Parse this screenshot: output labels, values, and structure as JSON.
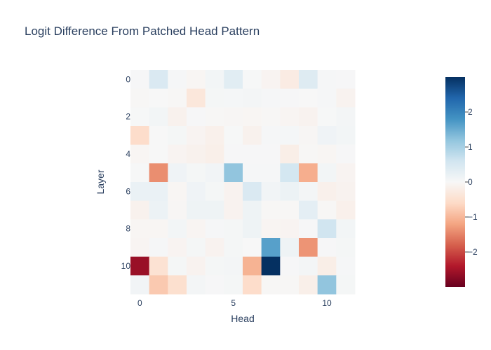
{
  "chart_data": {
    "type": "heatmap",
    "title": "Logit Difference From Patched Head Pattern",
    "xlabel": "Head",
    "ylabel": "Layer",
    "x_ticks": [
      0,
      5,
      10
    ],
    "y_ticks": [
      0,
      2,
      4,
      6,
      8,
      10
    ],
    "colorbar_ticks": [
      2,
      1,
      0,
      -1,
      -2
    ],
    "zmin": -3,
    "zmax": 3,
    "colorscale": [
      "#67001f",
      "#b2182b",
      "#d6604d",
      "#f4a582",
      "#fddbc7",
      "#f7f7f7",
      "#d1e5f0",
      "#92c5de",
      "#4393c3",
      "#2166ac",
      "#053061"
    ],
    "rows": 12,
    "cols": 12,
    "values": [
      [
        0.02,
        0.45,
        0.03,
        -0.05,
        0.08,
        0.35,
        0.01,
        -0.08,
        -0.25,
        0.4,
        0.03,
        0.02
      ],
      [
        -0.02,
        0.0,
        -0.02,
        -0.35,
        0.05,
        0.04,
        0.06,
        0.03,
        0.02,
        0.0,
        0.03,
        -0.1
      ],
      [
        0.01,
        0.08,
        -0.12,
        0.02,
        -0.03,
        -0.04,
        -0.05,
        -0.03,
        -0.06,
        -0.1,
        0.01,
        0.06
      ],
      [
        -0.55,
        0.0,
        0.05,
        -0.08,
        -0.15,
        0.01,
        -0.12,
        0.03,
        0.04,
        -0.04,
        0.12,
        0.08
      ],
      [
        -0.05,
        0.0,
        -0.08,
        -0.12,
        -0.18,
        0.02,
        0.02,
        0.02,
        -0.2,
        -0.02,
        -0.05,
        0.02
      ],
      [
        0.01,
        -1.4,
        0.12,
        0.05,
        0.1,
        1.2,
        0.03,
        0.03,
        0.55,
        -1.1,
        0.08,
        -0.08
      ],
      [
        0.2,
        0.2,
        -0.05,
        0.12,
        0.05,
        -0.1,
        0.45,
        0.1,
        0.18,
        0.06,
        -0.15,
        -0.1
      ],
      [
        -0.12,
        0.18,
        -0.04,
        0.15,
        0.14,
        -0.1,
        0.15,
        -0.02,
        -0.02,
        0.3,
        -0.02,
        -0.15
      ],
      [
        -0.05,
        -0.05,
        0.08,
        -0.06,
        0.03,
        0.05,
        0.15,
        -0.06,
        -0.08,
        0.02,
        0.6,
        0.08
      ],
      [
        -0.06,
        0.03,
        -0.08,
        0.05,
        -0.1,
        0.05,
        0.0,
        1.65,
        0.15,
        -1.35,
        0.02,
        0.05
      ],
      [
        -2.6,
        -0.45,
        0.05,
        -0.1,
        0.05,
        0.06,
        -1.05,
        3.0,
        0.02,
        0.06,
        -0.2,
        0.03
      ],
      [
        0.1,
        -0.8,
        -0.5,
        0.06,
        0.02,
        0.05,
        -0.55,
        -0.02,
        -0.03,
        -0.18,
        1.2,
        0.05
      ]
    ]
  }
}
